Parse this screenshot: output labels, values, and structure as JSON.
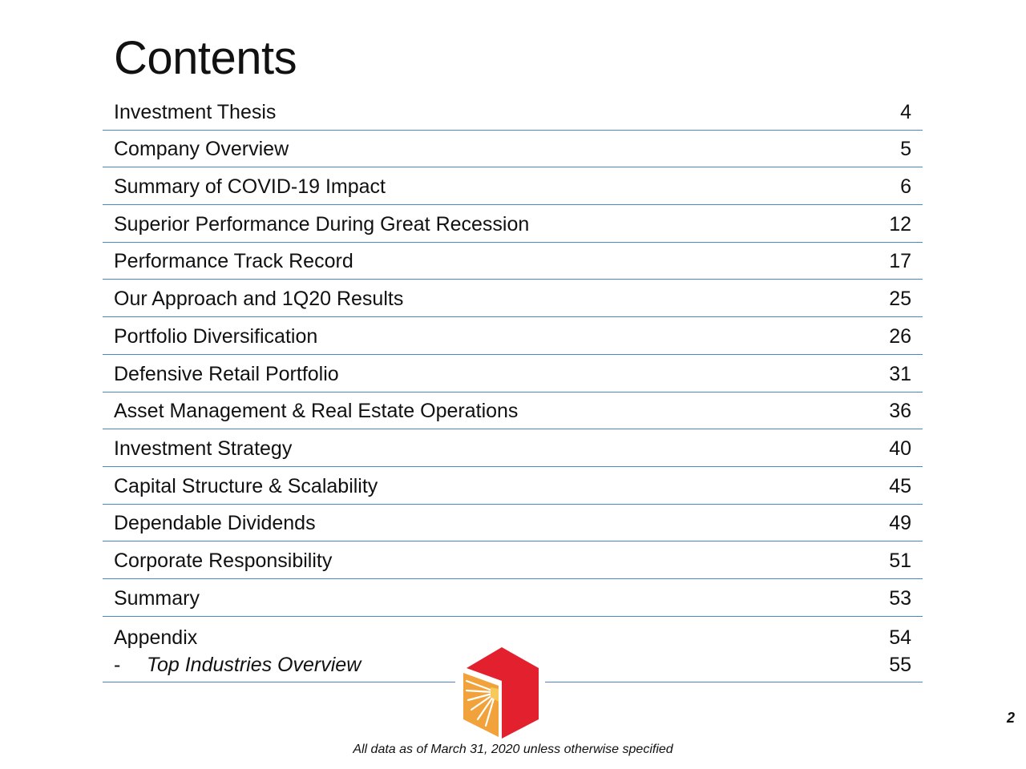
{
  "title": "Contents",
  "toc": [
    {
      "label": "Investment Thesis",
      "page": "4"
    },
    {
      "label": "Company Overview",
      "page": "5"
    },
    {
      "label": "Summary of COVID-19 Impact",
      "page": "6"
    },
    {
      "label": "Superior Performance During Great Recession",
      "page": "12"
    },
    {
      "label": "Performance Track Record",
      "page": "17"
    },
    {
      "label": "Our Approach and 1Q20 Results",
      "page": "25"
    },
    {
      "label": "Portfolio Diversification",
      "page": "26"
    },
    {
      "label": "Defensive Retail Portfolio",
      "page": "31"
    },
    {
      "label": "Asset Management & Real Estate Operations",
      "page": "36"
    },
    {
      "label": "Investment Strategy",
      "page": "40"
    },
    {
      "label": "Capital Structure & Scalability",
      "page": "45"
    },
    {
      "label": "Dependable Dividends",
      "page": "49"
    },
    {
      "label": "Corporate Responsibility",
      "page": "51"
    },
    {
      "label": "Summary",
      "page": "53"
    }
  ],
  "appendix": {
    "label": "Appendix",
    "page": "54",
    "sub_dash": "-",
    "sub_label": "Top Industries Overview",
    "sub_page": "55"
  },
  "footnote": "All data as of March 31, 2020 unless otherwise specified",
  "page_number": "2",
  "colors": {
    "rule": "#4a86c8",
    "logo_red": "#e3202e",
    "logo_orange": "#f2a23a",
    "logo_yellow": "#f7c85a"
  }
}
